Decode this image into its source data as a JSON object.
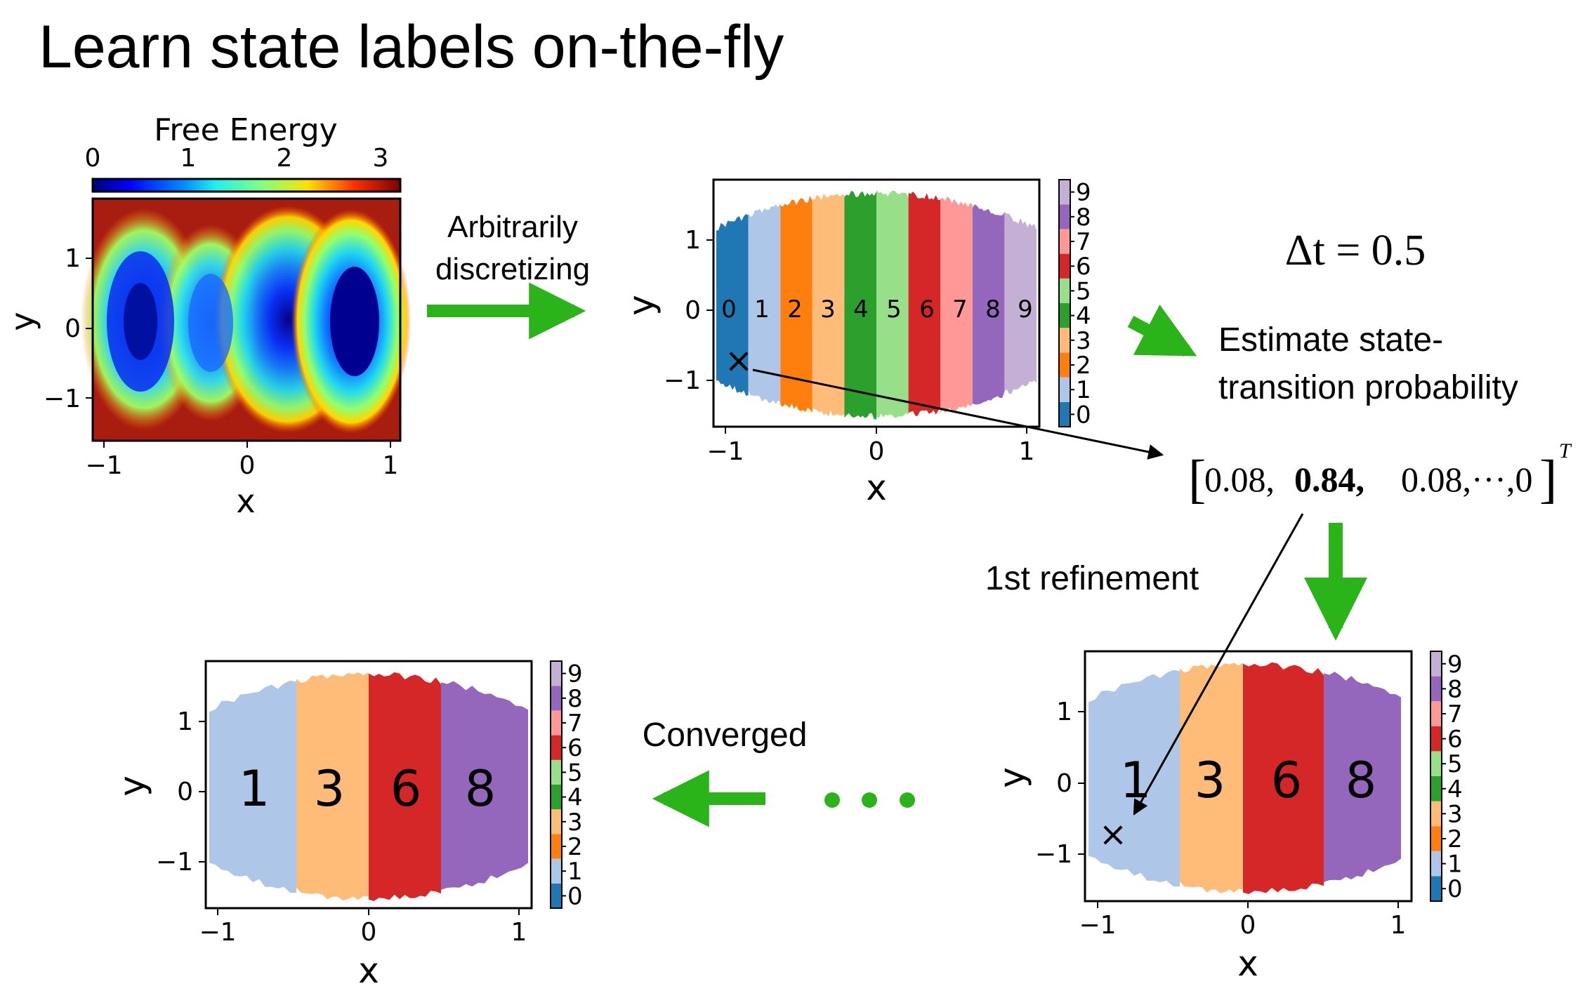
{
  "title": "Learn state labels on-the-fly",
  "colors": {
    "arrow_green": "#2bb31a",
    "state": [
      "#1f77b4",
      "#aec7e8",
      "#ff7f0e",
      "#ffbb78",
      "#2ca02c",
      "#98df8a",
      "#d62728",
      "#ff9896",
      "#9467bd",
      "#c5b0d5"
    ],
    "energy_bg": "#a81d10"
  },
  "free_energy_panel": {
    "colorbar_label": "Free Energy",
    "colorbar_ticks": [
      "0",
      "1",
      "2",
      "3"
    ],
    "xlabel": "x",
    "ylabel": "y",
    "xticks": [
      "−1",
      "0",
      "1"
    ],
    "yticks": [
      "1",
      "0",
      "−1"
    ]
  },
  "discrete_panel": {
    "xlabel": "x",
    "ylabel": "y",
    "xticks": [
      "−1",
      "0",
      "1"
    ],
    "yticks": [
      "1",
      "0",
      "−1"
    ],
    "state_labels": [
      "0",
      "1",
      "2",
      "3",
      "4",
      "5",
      "6",
      "7",
      "8",
      "9"
    ],
    "colorbar_ticks": [
      "0",
      "1",
      "2",
      "3",
      "4",
      "5",
      "6",
      "7",
      "8",
      "9"
    ],
    "marker": "×"
  },
  "refined_panel": {
    "xlabel": "x",
    "ylabel": "y",
    "xticks": [
      "−1",
      "0",
      "1"
    ],
    "yticks": [
      "1",
      "0",
      "−1"
    ],
    "state_labels": [
      "1",
      "3",
      "6",
      "8"
    ],
    "colorbar_ticks": [
      "0",
      "1",
      "2",
      "3",
      "4",
      "5",
      "6",
      "7",
      "8",
      "9"
    ],
    "marker": "×"
  },
  "converged_panel": {
    "xlabel": "x",
    "ylabel": "y",
    "xticks": [
      "−1",
      "0",
      "1"
    ],
    "yticks": [
      "1",
      "0",
      "−1"
    ],
    "state_labels": [
      "1",
      "3",
      "6",
      "8"
    ],
    "colorbar_ticks": [
      "0",
      "1",
      "2",
      "3",
      "4",
      "5",
      "6",
      "7",
      "8",
      "9"
    ]
  },
  "annotations": {
    "discretize_line1": "Arbitrarily",
    "discretize_line2": "discretizing",
    "delta_t": "Δt = 0.5",
    "estimate_line1": "Estimate state-",
    "estimate_line2": "transition probability",
    "vector_open": "[",
    "vector_a": "0.08,",
    "vector_b": "0.84,",
    "vector_c": "0.08,···,0",
    "vector_close": "]",
    "vector_sup": "T",
    "refinement": "1st refinement",
    "converged": "Converged"
  }
}
